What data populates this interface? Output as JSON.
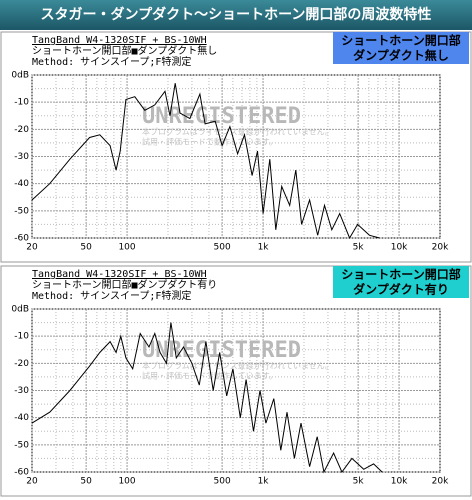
{
  "title": "スタガー・ダンプダクト～ショートホーン開口部の周波数特性",
  "chart_data": [
    {
      "type": "line",
      "title": "TangBand W4-1320SIF + BS-10WH",
      "subtitle": "ショートホーン開口部■ダンプダクト無し",
      "method": "Method: サインスイープ;F特測定",
      "annotation": [
        "ショートホーン開口部",
        "ダンプダクト無し"
      ],
      "annotation_color": "#4f86ee",
      "watermark": "UNREGISTERED",
      "watermark_note": [
        "本プログラムはライセンス登録が行われていません。",
        "試用・評価モードで動作しています。"
      ],
      "x": [
        20,
        27,
        38,
        53,
        63,
        75,
        83,
        89,
        98,
        114,
        135,
        160,
        190,
        207,
        226,
        245,
        290,
        343,
        375,
        445,
        500,
        570,
        650,
        730,
        830,
        910,
        1000,
        1120,
        1240,
        1370,
        1570,
        1740,
        1920,
        2200,
        2520,
        2830,
        3200,
        3660,
        4330,
        4960,
        6060,
        7200
      ],
      "values": [
        -46,
        -40,
        -31,
        -23,
        -22,
        -26,
        -35,
        -28,
        -9,
        -8,
        -13,
        -11,
        -6,
        -15,
        -3,
        -14,
        -16,
        -7,
        -18,
        -17,
        -26,
        -19,
        -29,
        -22,
        -37,
        -28,
        -51,
        -31,
        -57,
        -41,
        -48,
        -35,
        -55,
        -46,
        -59,
        -48,
        -57,
        -51,
        -60,
        -55,
        -59,
        -60
      ],
      "color": "#000000",
      "xlog": true,
      "grid": true,
      "xlim": [
        20,
        20000
      ],
      "ylim": [
        -60,
        0
      ],
      "xticks": [
        20,
        50,
        100,
        500,
        {
          "value": 1000,
          "label": "1k"
        },
        {
          "value": 5000,
          "label": "5k"
        },
        {
          "value": 10000,
          "label": "10k"
        },
        {
          "value": 20000,
          "label": "20k"
        }
      ],
      "xminorticks": [
        30,
        40,
        60,
        70,
        80,
        90,
        200,
        300,
        400,
        600,
        700,
        800,
        900,
        2000,
        3000,
        4000,
        6000,
        7000,
        8000,
        9000
      ],
      "yticks": [
        {
          "value": 0,
          "label": "0dB"
        },
        -10,
        -20,
        -30,
        -40,
        -50,
        -60
      ],
      "yminorticks": [
        -5,
        -15,
        -25,
        -35,
        -45,
        -55
      ]
    },
    {
      "type": "line",
      "title": "TangBand W4-1320SIF + BS-10WH",
      "subtitle": "ショートホーン開口部■ダンプダクト有り",
      "method": "Method: サインスイープ;F特測定",
      "annotation": [
        "ショートホーン開口部",
        "ダンプダクト有り"
      ],
      "annotation_color": "#1fcfcf",
      "watermark": "UNREGISTERED",
      "watermark_note": [
        "本プログラムはライセンス登録が行われていません。",
        "試用・評価モードで動作しています。"
      ],
      "x": [
        20,
        27,
        38,
        53,
        63,
        75,
        83,
        90,
        98,
        110,
        125,
        145,
        160,
        175,
        195,
        210,
        230,
        260,
        300,
        340,
        380,
        430,
        480,
        540,
        600,
        680,
        750,
        850,
        950,
        1050,
        1200,
        1350,
        1500,
        1700,
        1900,
        2200,
        2500,
        2800,
        3300,
        3800,
        4500,
        5500,
        6500,
        7500
      ],
      "values": [
        -42,
        -38,
        -30,
        -21,
        -16,
        -12,
        -16,
        -10,
        -18,
        -22,
        -9,
        -14,
        -9,
        -16,
        -20,
        -5,
        -18,
        -14,
        -20,
        -28,
        -12,
        -30,
        -16,
        -32,
        -22,
        -40,
        -26,
        -45,
        -30,
        -42,
        -33,
        -52,
        -38,
        -55,
        -42,
        -58,
        -47,
        -60,
        -53,
        -60,
        -55,
        -59,
        -57,
        -60
      ],
      "color": "#000000",
      "xlog": true,
      "grid": true,
      "xlim": [
        20,
        20000
      ],
      "ylim": [
        -60,
        0
      ],
      "xticks": [
        20,
        50,
        100,
        500,
        {
          "value": 1000,
          "label": "1k"
        },
        {
          "value": 5000,
          "label": "5k"
        },
        {
          "value": 10000,
          "label": "10k"
        },
        {
          "value": 20000,
          "label": "20k"
        }
      ],
      "xminorticks": [
        30,
        40,
        60,
        70,
        80,
        90,
        200,
        300,
        400,
        600,
        700,
        800,
        900,
        2000,
        3000,
        4000,
        6000,
        7000,
        8000,
        9000
      ],
      "yticks": [
        {
          "value": 0,
          "label": "0dB"
        },
        -10,
        -20,
        -30,
        -40,
        -50,
        -60
      ],
      "yminorticks": [
        -5,
        -15,
        -25,
        -35,
        -45,
        -55
      ]
    }
  ]
}
